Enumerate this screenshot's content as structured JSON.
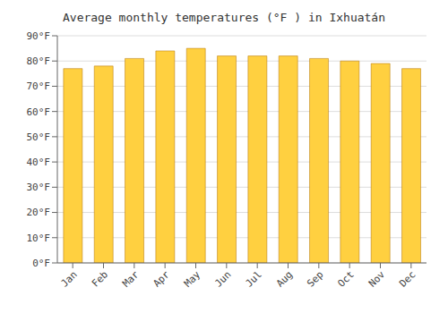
{
  "chart_data": {
    "type": "bar",
    "title": "Average monthly temperatures (°F ) in Ixhuatán",
    "categories": [
      "Jan",
      "Feb",
      "Mar",
      "Apr",
      "May",
      "Jun",
      "Jul",
      "Aug",
      "Sep",
      "Oct",
      "Nov",
      "Dec"
    ],
    "values": [
      77,
      78,
      81,
      84,
      85,
      82,
      82,
      82,
      81,
      80,
      79,
      77
    ],
    "color": "#ffd040",
    "ylim": [
      0,
      90
    ],
    "yticks": [
      {
        "value": 0,
        "label": "0°F"
      },
      {
        "value": 10,
        "label": "10°F"
      },
      {
        "value": 20,
        "label": "20°F"
      },
      {
        "value": 30,
        "label": "30°F"
      },
      {
        "value": 40,
        "label": "40°F"
      },
      {
        "value": 50,
        "label": "50°F"
      },
      {
        "value": 60,
        "label": "60°F"
      },
      {
        "value": 70,
        "label": "70°F"
      },
      {
        "value": 80,
        "label": "80°F"
      },
      {
        "value": 90,
        "label": "90°F"
      }
    ],
    "grid": true
  }
}
